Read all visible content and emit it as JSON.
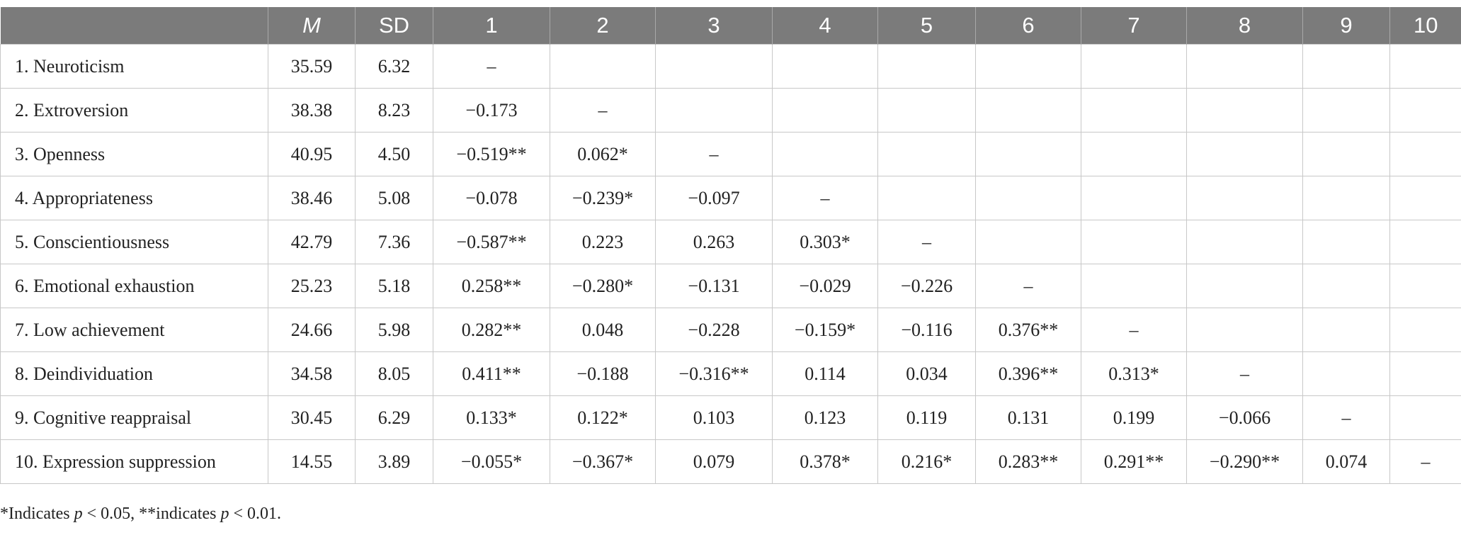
{
  "table": {
    "headers": [
      "",
      "M",
      "SD",
      "1",
      "2",
      "3",
      "4",
      "5",
      "6",
      "7",
      "8",
      "9",
      "10"
    ],
    "rows": [
      [
        "1. Neuroticism",
        "35.59",
        "6.32",
        "–",
        "",
        "",
        "",
        "",
        "",
        "",
        "",
        "",
        ""
      ],
      [
        "2. Extroversion",
        "38.38",
        "8.23",
        "−0.173",
        "–",
        "",
        "",
        "",
        "",
        "",
        "",
        "",
        ""
      ],
      [
        "3. Openness",
        "40.95",
        "4.50",
        "−0.519**",
        "0.062*",
        "–",
        "",
        "",
        "",
        "",
        "",
        "",
        ""
      ],
      [
        "4. Appropriateness",
        "38.46",
        "5.08",
        "−0.078",
        "−0.239*",
        "−0.097",
        "–",
        "",
        "",
        "",
        "",
        "",
        ""
      ],
      [
        "5. Conscientiousness",
        "42.79",
        "7.36",
        "−0.587**",
        "0.223",
        "0.263",
        "0.303*",
        "–",
        "",
        "",
        "",
        "",
        ""
      ],
      [
        "6. Emotional exhaustion",
        "25.23",
        "5.18",
        "0.258**",
        "−0.280*",
        "−0.131",
        "−0.029",
        "−0.226",
        "–",
        "",
        "",
        "",
        ""
      ],
      [
        "7. Low achievement",
        "24.66",
        "5.98",
        "0.282**",
        "0.048",
        "−0.228",
        "−0.159*",
        "−0.116",
        "0.376**",
        "–",
        "",
        "",
        ""
      ],
      [
        "8. Deindividuation",
        "34.58",
        "8.05",
        "0.411**",
        "−0.188",
        "−0.316**",
        "0.114",
        "0.034",
        "0.396**",
        "0.313*",
        "–",
        "",
        ""
      ],
      [
        "9. Cognitive reappraisal",
        "30.45",
        "6.29",
        "0.133*",
        "0.122*",
        "0.103",
        "0.123",
        "0.119",
        "0.131",
        "0.199",
        "−0.066",
        "–",
        ""
      ],
      [
        "10. Expression suppression",
        "14.55",
        "3.89",
        "−0.055*",
        "−0.367*",
        "0.079",
        "0.378*",
        "0.216*",
        "0.283**",
        "0.291**",
        "−0.290**",
        "0.074",
        "–"
      ]
    ]
  },
  "footnote": {
    "prefix": "*Indicates ",
    "p1": "p",
    "mid": " < 0.05, **indicates ",
    "p2": "p",
    "suffix": " < 0.01."
  },
  "colors": {
    "header_background": "#7b7b7b",
    "header_text": "#ffffff",
    "grid_line": "#c8c8c8"
  }
}
